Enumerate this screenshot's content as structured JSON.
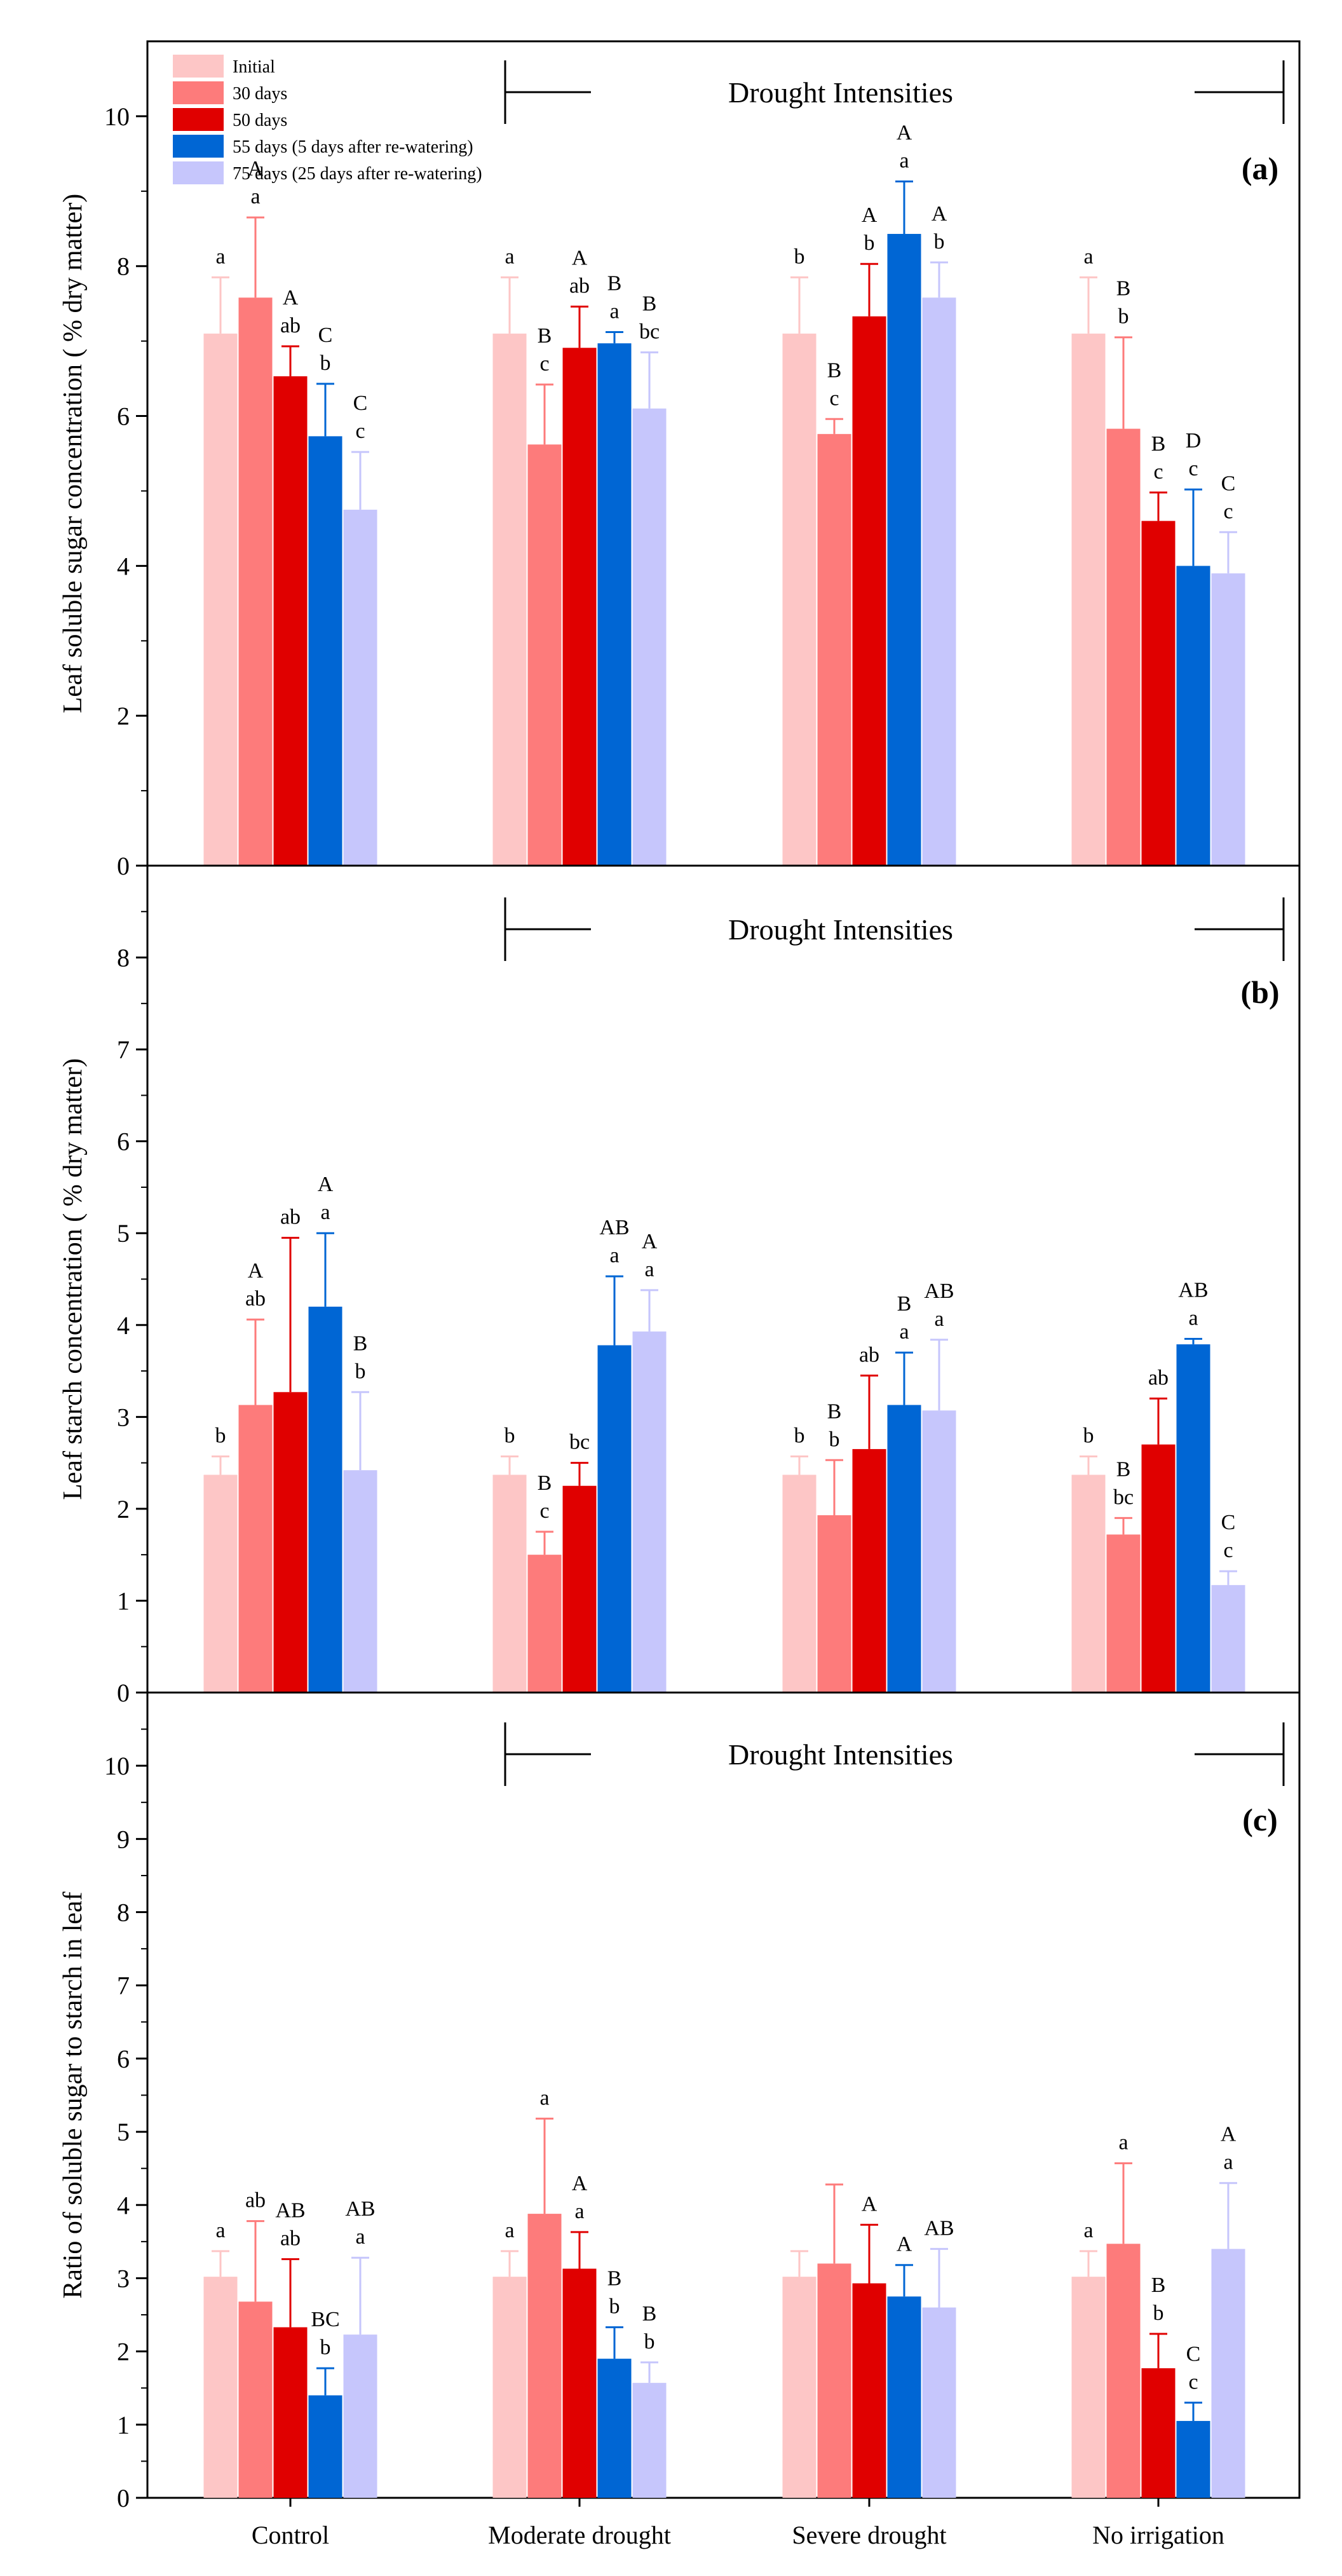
{
  "figure": {
    "categories": [
      "Control",
      "Moderate drought",
      "Severe drought",
      "No irrigation"
    ],
    "series_names": [
      "Initial",
      "30 days",
      "50 days",
      "55 days (5 days after re-watering)",
      "75 days (25 days after re-watering)"
    ],
    "series_colors": [
      "#fdc6c6",
      "#fd7b7b",
      "#e00000",
      "#0066d4",
      "#c6c6fc"
    ],
    "annotation": "Drought Intensities"
  },
  "chart_data": [
    {
      "type": "bar",
      "panel_label": "(a)",
      "ylabel": "Leaf soluble sugar concentration ( % dry matter)",
      "xlabel": "",
      "ylim": [
        0,
        11
      ],
      "yticks": [
        0,
        2,
        4,
        6,
        8,
        10
      ],
      "legend": "top-left",
      "categories": [
        "Control",
        "Moderate drought",
        "Severe drought",
        "No irrigation"
      ],
      "series": [
        {
          "name": "Initial",
          "values": [
            7.1,
            7.1,
            7.1,
            7.1
          ],
          "errors": [
            0.75,
            0.75,
            0.75,
            0.75
          ],
          "labels": [
            [
              "a"
            ],
            [
              "a"
            ],
            [
              "b"
            ],
            [
              "a"
            ]
          ]
        },
        {
          "name": "30 days",
          "values": [
            7.58,
            5.62,
            5.76,
            5.83
          ],
          "errors": [
            1.07,
            0.8,
            0.2,
            1.22
          ],
          "labels": [
            [
              "A",
              "a"
            ],
            [
              "B",
              "c"
            ],
            [
              "B",
              "c"
            ],
            [
              "B",
              "b"
            ]
          ]
        },
        {
          "name": "50 days",
          "values": [
            6.53,
            6.91,
            7.33,
            4.6
          ],
          "errors": [
            0.4,
            0.55,
            0.7,
            0.38
          ],
          "labels": [
            [
              "A",
              "ab"
            ],
            [
              "A",
              "ab"
            ],
            [
              "A",
              "b"
            ],
            [
              "B",
              "c"
            ]
          ]
        },
        {
          "name": "55 days (5 days after re-watering)",
          "values": [
            5.73,
            6.97,
            8.43,
            4.0
          ],
          "errors": [
            0.7,
            0.15,
            0.7,
            1.02
          ],
          "labels": [
            [
              "C",
              "b"
            ],
            [
              "B",
              "a"
            ],
            [
              "A",
              "a"
            ],
            [
              "D",
              "c"
            ]
          ]
        },
        {
          "name": "75 days (25 days after re-watering)",
          "values": [
            4.75,
            6.1,
            7.58,
            3.9
          ],
          "errors": [
            0.77,
            0.75,
            0.47,
            0.55
          ],
          "labels": [
            [
              "C",
              "c"
            ],
            [
              "B",
              "bc"
            ],
            [
              "A",
              "b"
            ],
            [
              "C",
              "c"
            ]
          ]
        }
      ]
    },
    {
      "type": "bar",
      "panel_label": "(b)",
      "ylabel": "Leaf starch concentration ( % dry matter)",
      "xlabel": "",
      "ylim": [
        0,
        9
      ],
      "yticks": [
        0,
        1,
        2,
        3,
        4,
        5,
        6,
        7,
        8
      ],
      "categories": [
        "Control",
        "Moderate drought",
        "Severe drought",
        "No irrigation"
      ],
      "series": [
        {
          "name": "Initial",
          "values": [
            2.37,
            2.37,
            2.37,
            2.37
          ],
          "errors": [
            0.2,
            0.2,
            0.2,
            0.2
          ],
          "labels": [
            [
              "b"
            ],
            [
              "b"
            ],
            [
              "b"
            ],
            [
              "b"
            ]
          ]
        },
        {
          "name": "30 days",
          "values": [
            3.13,
            1.5,
            1.93,
            1.72
          ],
          "errors": [
            0.93,
            0.25,
            0.6,
            0.18
          ],
          "labels": [
            [
              "A",
              "ab"
            ],
            [
              "B",
              "c"
            ],
            [
              "B",
              "b"
            ],
            [
              "B",
              "bc"
            ]
          ]
        },
        {
          "name": "50 days",
          "values": [
            3.27,
            2.25,
            2.65,
            2.7
          ],
          "errors": [
            1.68,
            0.25,
            0.8,
            0.5
          ],
          "labels": [
            [
              "ab"
            ],
            [
              "bc"
            ],
            [
              "ab"
            ],
            [
              "ab"
            ]
          ]
        },
        {
          "name": "55 days (5 days after re-watering)",
          "values": [
            4.2,
            3.78,
            3.13,
            3.79
          ],
          "errors": [
            0.8,
            0.75,
            0.57,
            0.06
          ],
          "labels": [
            [
              "A",
              "a"
            ],
            [
              "AB",
              "a"
            ],
            [
              "B",
              "a"
            ],
            [
              "AB",
              "a"
            ]
          ]
        },
        {
          "name": "75 days (25 days after re-watering)",
          "values": [
            2.42,
            3.93,
            3.07,
            1.17
          ],
          "errors": [
            0.85,
            0.45,
            0.77,
            0.15
          ],
          "labels": [
            [
              "B",
              "b"
            ],
            [
              "A",
              "a"
            ],
            [
              "AB",
              "a"
            ],
            [
              "C",
              "c"
            ]
          ]
        }
      ]
    },
    {
      "type": "bar",
      "panel_label": "(c)",
      "ylabel": "Ratio of soluble sugar to starch in leaf",
      "xlabel": "",
      "ylim": [
        0,
        11
      ],
      "yticks": [
        0,
        1,
        2,
        3,
        4,
        5,
        6,
        7,
        8,
        9,
        10
      ],
      "categories": [
        "Control",
        "Moderate drought",
        "Severe drought",
        "No irrigation"
      ],
      "series": [
        {
          "name": "Initial",
          "values": [
            3.02,
            3.02,
            3.02,
            3.02
          ],
          "errors": [
            0.35,
            0.35,
            0.35,
            0.35
          ],
          "labels": [
            [
              "a"
            ],
            [
              "a"
            ],
            [],
            [
              "a"
            ]
          ]
        },
        {
          "name": "30 days",
          "values": [
            2.68,
            3.88,
            3.2,
            3.47
          ],
          "errors": [
            1.1,
            1.3,
            1.08,
            1.1
          ],
          "labels": [
            [
              "ab"
            ],
            [
              "a"
            ],
            [],
            [
              "a"
            ]
          ]
        },
        {
          "name": "50 days",
          "values": [
            2.33,
            3.13,
            2.93,
            1.77
          ],
          "errors": [
            0.93,
            0.5,
            0.8,
            0.47
          ],
          "labels": [
            [
              "AB",
              "ab"
            ],
            [
              "A",
              "a"
            ],
            [
              "A"
            ],
            [
              "B",
              "b"
            ]
          ]
        },
        {
          "name": "55 days (5 days after re-watering)",
          "values": [
            1.4,
            1.9,
            2.75,
            1.05
          ],
          "errors": [
            0.37,
            0.43,
            0.43,
            0.25
          ],
          "labels": [
            [
              "BC",
              "b"
            ],
            [
              "B",
              "b"
            ],
            [
              "A"
            ],
            [
              "C",
              "c"
            ]
          ]
        },
        {
          "name": "75 days (25 days after re-watering)",
          "values": [
            2.23,
            1.57,
            2.6,
            3.4
          ],
          "errors": [
            1.05,
            0.28,
            0.8,
            0.9
          ],
          "labels": [
            [
              "AB",
              "a"
            ],
            [
              "B",
              "b"
            ],
            [
              "AB"
            ],
            [
              "A",
              "a"
            ]
          ]
        }
      ]
    }
  ]
}
